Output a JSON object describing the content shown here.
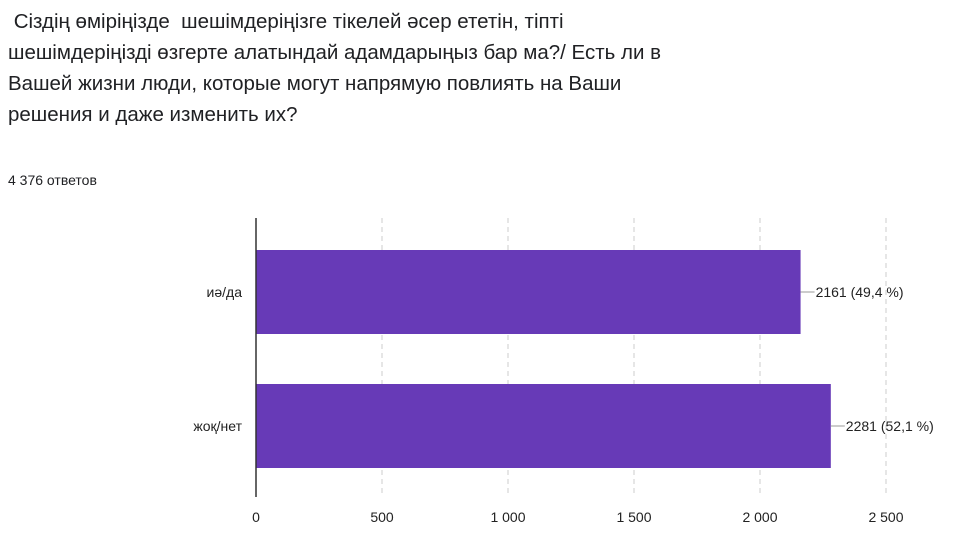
{
  "question": " Сіздің өміріңізде  шешімдеріңізге тікелей әсер ететін, тіпті шешімдеріңізді өзгерте алатындай адамдарыңыз бар ма?/ Есть ли в Вашей жизни люди, которые могут напрямую повлиять на Ваши решения и даже изменить их?",
  "response_count": "4 376 ответов",
  "colors": {
    "bar": "#673ab7",
    "axis": "#333333",
    "grid": "#cccccc",
    "leader": "#999999"
  },
  "chart_data": {
    "type": "bar",
    "orientation": "horizontal",
    "categories": [
      "иә/да",
      "жоқ/нет"
    ],
    "values": [
      2161,
      2281
    ],
    "data_labels": [
      "2161 (49,4 %)",
      "2281 (52,1 %)"
    ],
    "xlim": [
      0,
      2500
    ],
    "xticks": [
      0,
      500,
      1000,
      1500,
      2000,
      2500
    ],
    "xtick_labels": [
      "0",
      "500",
      "1 000",
      "1 500",
      "2 000",
      "2 500"
    ],
    "grid": true,
    "grid_style": "dashed vertical"
  }
}
